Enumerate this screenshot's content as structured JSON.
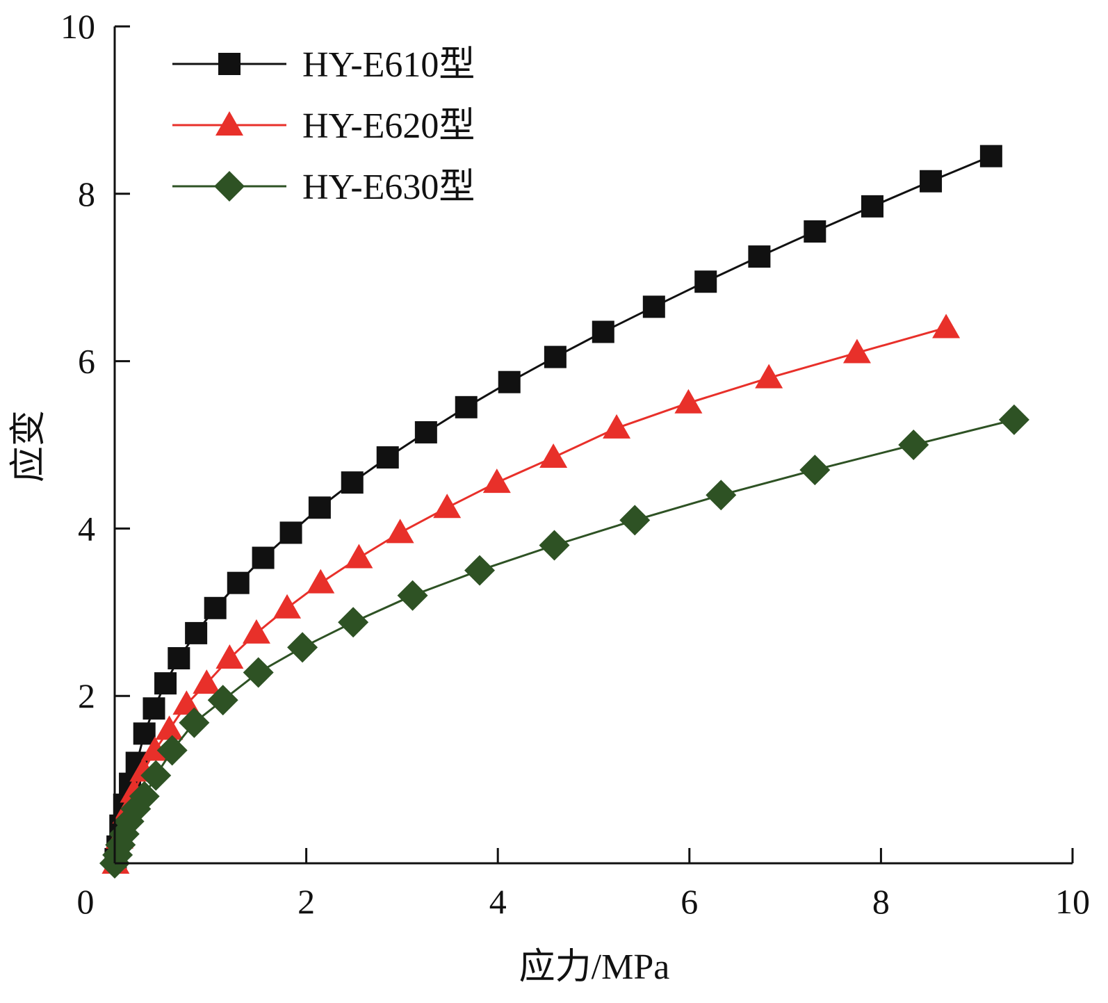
{
  "chart_data": {
    "type": "line",
    "xlabel": "应力/MPa",
    "ylabel": "应变",
    "xlim": [
      0,
      10
    ],
    "ylim": [
      0,
      10
    ],
    "xticks": [
      "0",
      "2",
      "4",
      "6",
      "8",
      "10"
    ],
    "yticks": [
      "2",
      "4",
      "6",
      "8",
      "10"
    ],
    "grid": false,
    "legend_position": "top-left",
    "series": [
      {
        "name": "HY-E610型",
        "color": "#111111",
        "marker": "square",
        "x": [
          0.01,
          0.03,
          0.06,
          0.1,
          0.16,
          0.23,
          0.31,
          0.41,
          0.53,
          0.67,
          0.85,
          1.05,
          1.29,
          1.55,
          1.84,
          2.14,
          2.48,
          2.85,
          3.25,
          3.67,
          4.12,
          4.6,
          5.1,
          5.63,
          6.17,
          6.73,
          7.31,
          7.91,
          8.52,
          9.15
        ],
        "y": [
          0.05,
          0.2,
          0.45,
          0.7,
          0.95,
          1.2,
          1.55,
          1.85,
          2.15,
          2.45,
          2.75,
          3.05,
          3.35,
          3.65,
          3.95,
          4.25,
          4.55,
          4.85,
          5.15,
          5.45,
          5.75,
          6.05,
          6.35,
          6.65,
          6.95,
          7.25,
          7.55,
          7.85,
          8.15,
          8.45
        ]
      },
      {
        "name": "HY-E620型",
        "color": "#e8302a",
        "marker": "triangle",
        "x": [
          0.01,
          0.05,
          0.12,
          0.2,
          0.3,
          0.42,
          0.57,
          0.75,
          0.96,
          1.2,
          1.48,
          1.8,
          2.15,
          2.55,
          2.98,
          3.47,
          3.99,
          4.58,
          5.24,
          5.99,
          6.83,
          7.75,
          8.68
        ],
        "y": [
          0.0,
          0.3,
          0.6,
          0.85,
          1.1,
          1.35,
          1.6,
          1.9,
          2.15,
          2.45,
          2.75,
          3.05,
          3.35,
          3.65,
          3.95,
          4.25,
          4.55,
          4.85,
          5.2,
          5.5,
          5.8,
          6.1,
          6.4
        ]
      },
      {
        "name": "HY-E630型",
        "color": "#2e5224",
        "marker": "diamond",
        "x": [
          0.0,
          0.03,
          0.06,
          0.1,
          0.15,
          0.22,
          0.31,
          0.43,
          0.6,
          0.83,
          1.13,
          1.5,
          1.96,
          2.49,
          3.11,
          3.81,
          4.59,
          5.43,
          6.33,
          7.31,
          8.34,
          9.39
        ],
        "y": [
          0.0,
          0.1,
          0.22,
          0.35,
          0.5,
          0.65,
          0.8,
          1.05,
          1.35,
          1.68,
          1.95,
          2.28,
          2.58,
          2.88,
          3.2,
          3.5,
          3.8,
          4.1,
          4.4,
          4.7,
          5.0,
          5.3
        ]
      }
    ]
  }
}
